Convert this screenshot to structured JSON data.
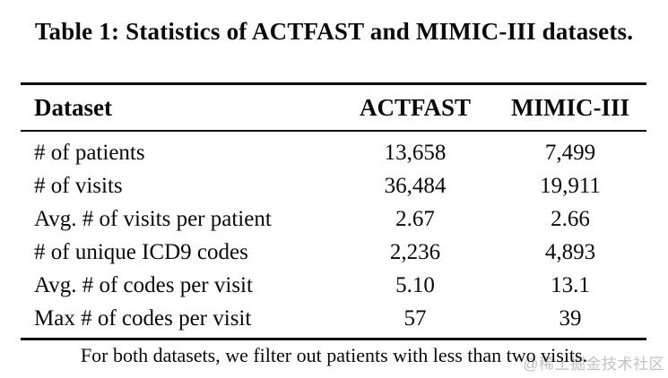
{
  "caption": "Table 1: Statistics of ACTFAST and MIMIC-III datasets.",
  "table": {
    "headers": [
      "Dataset",
      "ACTFAST",
      "MIMIC-III"
    ],
    "rows": [
      {
        "label": "# of patients",
        "actfast": "13,658",
        "mimic": "7,499"
      },
      {
        "label": "# of visits",
        "actfast": "36,484",
        "mimic": "19,911"
      },
      {
        "label": "Avg. # of visits per patient",
        "actfast": "2.67",
        "mimic": "2.66"
      },
      {
        "label": "# of unique ICD9 codes",
        "actfast": "2,236",
        "mimic": "4,893"
      },
      {
        "label": "Avg. # of codes per visit",
        "actfast": "5.10",
        "mimic": "13.1"
      },
      {
        "label": "Max # of codes per visit",
        "actfast": "57",
        "mimic": "39"
      }
    ]
  },
  "footnote": "For both datasets, we filter out patients with less than two visits.",
  "watermark": "@稀土掘金技术社区",
  "colors": {
    "text": "#0a0a0a",
    "rule": "#0a0a0a",
    "watermark": "#c2c2c2",
    "background": "#ffffff"
  },
  "chart_data": {
    "type": "table",
    "title": "Table 1: Statistics of ACTFAST and MIMIC-III datasets.",
    "columns": [
      "Dataset",
      "ACTFAST",
      "MIMIC-III"
    ],
    "rows": [
      [
        "# of patients",
        "13,658",
        "7,499"
      ],
      [
        "# of visits",
        "36,484",
        "19,911"
      ],
      [
        "Avg. # of visits per patient",
        "2.67",
        "2.66"
      ],
      [
        "# of unique ICD9 codes",
        "2,236",
        "4,893"
      ],
      [
        "Avg. # of codes per visit",
        "5.10",
        "13.1"
      ],
      [
        "Max # of codes per visit",
        "57",
        "39"
      ]
    ],
    "note": "For both datasets, we filter out patients with less than two visits."
  }
}
